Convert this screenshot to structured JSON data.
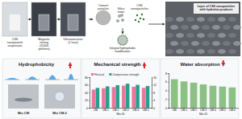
{
  "process": {
    "steps": [
      "CSS nanoparticle suspension",
      "Magnetic stirring (@400 rpm/min)",
      "Ultrasonication (1 hour)"
    ]
  },
  "materials": {
    "items": [
      "Cement particles",
      "Silica fume",
      "CSS nanoparticles"
    ],
    "result": "Integral hydrophobic modification"
  },
  "sem": {
    "label": "Layer of CSS nanoparticles with hydration products"
  },
  "hydrophobicity": {
    "title": "Hydrophobicity",
    "samples": [
      "Mix CM",
      "Mix CM-3"
    ]
  },
  "chart_data": [
    {
      "type": "bar",
      "title": "Mechanical strength",
      "x_label": "Mix ID",
      "categories": [
        "CM",
        "CM-1",
        "CM-2",
        "CM-3",
        "CM-4",
        "CM-5"
      ],
      "series": [
        {
          "name": "Flexural",
          "color": "#e8789a",
          "axis": "y2",
          "values": [
            9.5,
            10.2,
            10.8,
            11.6,
            11.0,
            10.4
          ]
        },
        {
          "name": "Compressive strength",
          "color": "#2a9d8f",
          "values": [
            52,
            56,
            59,
            63,
            60,
            57
          ]
        }
      ],
      "ylim": [
        0,
        80
      ],
      "yticks": [
        0,
        20,
        40,
        60,
        80
      ],
      "y2lim": [
        0,
        16
      ],
      "y2ticks": [
        0,
        4,
        8,
        12,
        16
      ],
      "legend": "top"
    },
    {
      "type": "bar",
      "title": "Water absorption",
      "x_label": "Mix ID",
      "categories": [
        "CM",
        "CM-1",
        "CM-2",
        "CM-3",
        "CM-4",
        "CM-5",
        "CM-6"
      ],
      "values": [
        6.6,
        6.1,
        5.8,
        5.4,
        5.1,
        4.9,
        4.7
      ],
      "color": "#8cc084",
      "ylim": [
        0,
        8
      ],
      "yticks": [
        0,
        2,
        4,
        6,
        8
      ]
    }
  ]
}
